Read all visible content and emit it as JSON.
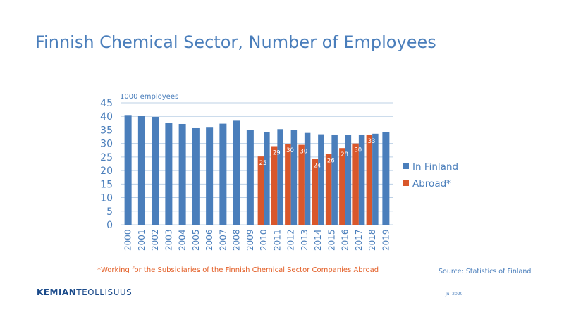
{
  "title": "Finnish Chemical Sector, Number of Employees",
  "footnote": "*Working for the Subsidiaries of the Finnish Chemical Sector Companies Abroad",
  "source": "Source: Statistics of Finland",
  "brand": {
    "part1": "KEMIAN",
    "part2": "TEOLLISUUS"
  },
  "date": "Jul 2020",
  "colors": {
    "in_finland": "#4a7ebb",
    "abroad": "#d9572b",
    "text": "#4a7ebb"
  },
  "chart_data": {
    "type": "bar",
    "title": "",
    "xlabel": "",
    "ylabel": "1000 employees",
    "ylim": [
      0,
      45
    ],
    "yticks": [
      0,
      5,
      10,
      15,
      20,
      25,
      30,
      35,
      40,
      45
    ],
    "grid": true,
    "legend_position": "right",
    "categories": [
      "2000",
      "2001",
      "2002",
      "2003",
      "2004",
      "2005",
      "2006",
      "2007",
      "2008",
      "2009",
      "2010",
      "2011",
      "2012",
      "2013",
      "2014",
      "2015",
      "2016",
      "2017",
      "2018",
      "2019"
    ],
    "series": [
      {
        "name": "In Finland",
        "values": [
          40.5,
          40.3,
          39.8,
          37.5,
          37.2,
          35.9,
          36.1,
          37.3,
          38.4,
          34.9,
          34.3,
          35.3,
          34.9,
          33.9,
          33.4,
          33.3,
          33.1,
          33.3,
          33.6,
          34.2
        ]
      },
      {
        "name": "Abroad*",
        "values": [
          null,
          null,
          null,
          null,
          null,
          null,
          null,
          null,
          null,
          null,
          25.2,
          29.0,
          29.9,
          29.5,
          24.3,
          26.2,
          28.3,
          30.0,
          33.3,
          null
        ],
        "data_labels": [
          "",
          "",
          "",
          "",
          "",
          "",
          "",
          "",
          "",
          "",
          "25",
          "29",
          "30",
          "30",
          "24",
          "26",
          "28",
          "30",
          "33",
          ""
        ]
      }
    ]
  }
}
